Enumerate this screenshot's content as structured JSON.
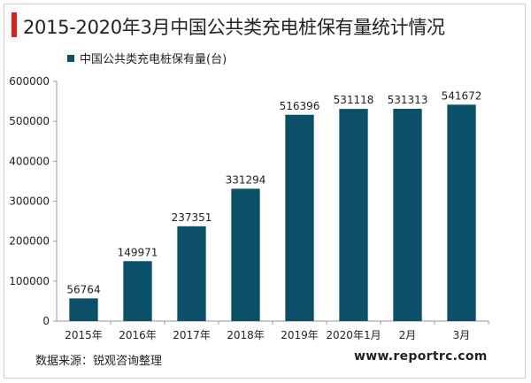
{
  "title": "2015-2020年3月中国公共类充电桩保有量统计情况",
  "colors": {
    "accent": "#e21d1d",
    "bar": "#0c4f68",
    "axis": "#999999",
    "text": "#222222"
  },
  "chart_data": {
    "type": "bar",
    "categories": [
      "2015年",
      "2016年",
      "2017年",
      "2018年",
      "2019年",
      "2020年1月",
      "2月",
      "3月"
    ],
    "series": [
      {
        "name": "中国公共类充电桩保有量(台)",
        "values": [
          56764,
          149971,
          237351,
          331294,
          516396,
          531118,
          531313,
          541672
        ]
      }
    ],
    "ylim": [
      0,
      600000
    ],
    "yticks": [
      "0",
      "100000",
      "200000",
      "300000",
      "400000",
      "500000",
      "600000"
    ],
    "grid": false,
    "legend_position": "top-left"
  },
  "footer": {
    "source": "数据来源：锐观咨询整理",
    "url": "www.reportrc.com"
  }
}
